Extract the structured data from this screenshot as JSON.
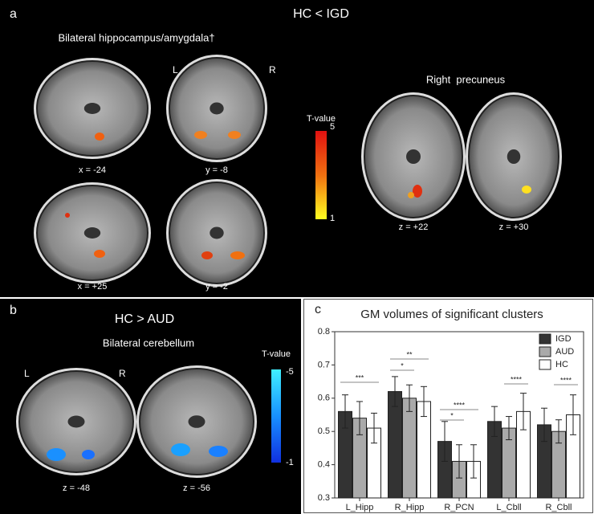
{
  "panel_a": {
    "label": "a",
    "title": "HC < IGD",
    "subtitle": "Bilateral hippocampus/amygdala†",
    "left": "L",
    "right": "R",
    "captions": [
      "x = -24",
      "y = -8",
      "x = +25",
      "y = -2"
    ],
    "colorbar": {
      "label": "T-value",
      "ticks": [
        5,
        1
      ]
    },
    "precuneus_title": "Right  precuneus",
    "precuneus_captions": [
      "z = +22",
      "z = +30"
    ]
  },
  "panel_b": {
    "label": "b",
    "title": "HC > AUD",
    "subtitle": "Bilateral cerebellum",
    "left": "L",
    "right": "R",
    "captions": [
      "z = -48",
      "z = -56"
    ],
    "colorbar": {
      "label": "T-value",
      "ticks": [
        -5,
        -1
      ]
    }
  },
  "panel_c_label": "c",
  "chart_data": {
    "type": "bar",
    "title": "GM volumes of significant clusters",
    "categories": [
      "L_Hipp",
      "R_Hipp",
      "R_PCN",
      "L_Cbll",
      "R_Cbll"
    ],
    "series": [
      {
        "name": "IGD",
        "color": "#333333",
        "values": [
          0.56,
          0.62,
          0.47,
          0.53,
          0.52
        ],
        "errors": [
          0.05,
          0.045,
          0.06,
          0.045,
          0.05
        ]
      },
      {
        "name": "AUD",
        "color": "#aaaaaa",
        "values": [
          0.54,
          0.6,
          0.41,
          0.51,
          0.5
        ],
        "errors": [
          0.05,
          0.04,
          0.05,
          0.035,
          0.035
        ]
      },
      {
        "name": "HC",
        "color": "#ffffff",
        "values": [
          0.51,
          0.59,
          0.41,
          0.56,
          0.55
        ],
        "errors": [
          0.045,
          0.045,
          0.05,
          0.055,
          0.06
        ]
      }
    ],
    "ylim": [
      0.3,
      0.8
    ],
    "yticks": [
      0.3,
      0.4,
      0.5,
      0.6,
      0.7,
      0.8
    ],
    "legend": "top-right",
    "annotations": [
      "***",
      "*",
      "**",
      "*",
      "****",
      "****",
      "****"
    ]
  }
}
